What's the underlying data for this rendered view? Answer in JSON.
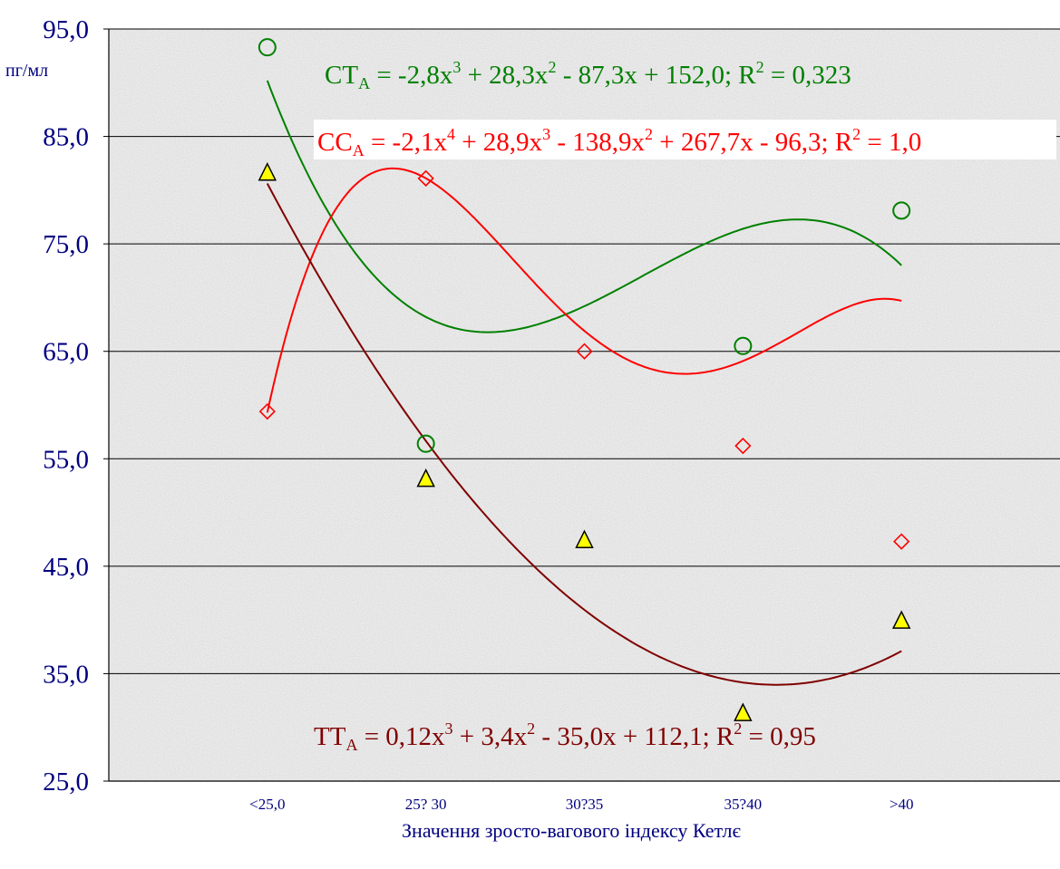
{
  "chart_data": {
    "type": "scatter",
    "y_unit_label": "пг/мл",
    "xlabel": "Значення зросто-вагового індексу Кетлє",
    "ylim": [
      25,
      95
    ],
    "yticks": [
      "95,0",
      "85,0",
      "75,0",
      "65,0",
      "55,0",
      "45,0",
      "35,0",
      "25,0"
    ],
    "ytick_values": [
      95,
      85,
      75,
      65,
      55,
      45,
      35,
      25
    ],
    "categories": [
      "<25,0",
      "25? 30",
      "30?35",
      "35?40",
      ">40"
    ],
    "x_extent": [
      0,
      6
    ],
    "grid": "horizontal",
    "series": [
      {
        "id": "ct",
        "color": "#008000",
        "marker": "circle",
        "points": [
          [
            1,
            93.3
          ],
          [
            2,
            56.4
          ],
          [
            4,
            65.5
          ],
          [
            5,
            78.1
          ]
        ],
        "trend": {
          "degree": 3,
          "coef": [
            152.0,
            -87.3,
            28.3,
            -2.8
          ],
          "x_range": [
            1,
            5
          ]
        }
      },
      {
        "id": "cc",
        "color": "#ff0000",
        "marker": "diamond",
        "points": [
          [
            1,
            59.4
          ],
          [
            2,
            81.1
          ],
          [
            3,
            65.0
          ],
          [
            4,
            56.2
          ],
          [
            5,
            47.3
          ]
        ],
        "trend": {
          "degree": 4,
          "coef": [
            -96.3,
            267.7,
            -138.9,
            28.9,
            -2.1
          ],
          "x_range": [
            1,
            5
          ]
        }
      },
      {
        "id": "tt",
        "color": "#800000",
        "marker": "triangle",
        "marker_fill": "#ffff00",
        "points": [
          [
            1,
            81.7
          ],
          [
            2,
            53.2
          ],
          [
            3,
            47.5
          ],
          [
            4,
            31.4
          ],
          [
            5,
            40.0
          ]
        ],
        "trend": {
          "degree": 3,
          "coef": [
            112.1,
            -35.0,
            3.4,
            0.12
          ],
          "x_range": [
            1,
            5
          ]
        }
      }
    ],
    "annotations": [
      {
        "id": "ct-eq",
        "color": "#008000",
        "parts": [
          [
            "CT",
            ""
          ],
          [
            "A",
            "sub"
          ],
          [
            " = -2,8x",
            ""
          ],
          [
            "3",
            "sup"
          ],
          [
            " + 28,3x",
            ""
          ],
          [
            "2",
            "sup"
          ],
          [
            " - 87,3x + 152,0; R",
            ""
          ],
          [
            "2",
            "sup"
          ],
          [
            " = 0,323",
            ""
          ]
        ]
      },
      {
        "id": "cc-eq",
        "color": "#ff0000",
        "parts": [
          [
            "CC",
            ""
          ],
          [
            "A",
            "sub"
          ],
          [
            " = -2,1x",
            ""
          ],
          [
            "4",
            "sup"
          ],
          [
            " + 28,9x",
            ""
          ],
          [
            "3",
            "sup"
          ],
          [
            " - 138,9x",
            ""
          ],
          [
            "2",
            "sup"
          ],
          [
            " + 267,7x - 96,3; R",
            ""
          ],
          [
            "2",
            "sup"
          ],
          [
            " = 1,0",
            ""
          ]
        ]
      },
      {
        "id": "tt-eq",
        "color": "#800000",
        "parts": [
          [
            "TT",
            ""
          ],
          [
            "A",
            "sub"
          ],
          [
            " = 0,12x",
            ""
          ],
          [
            "3",
            "sup"
          ],
          [
            " + 3,4x",
            ""
          ],
          [
            "2",
            "sup"
          ],
          [
            " - 35,0x + 112,1; R",
            ""
          ],
          [
            "2",
            "sup"
          ],
          [
            " = 0,95",
            ""
          ]
        ]
      }
    ]
  },
  "colors": {
    "axis_text": "#000080",
    "gridline": "#000000",
    "plot_bg": "#ececec"
  }
}
